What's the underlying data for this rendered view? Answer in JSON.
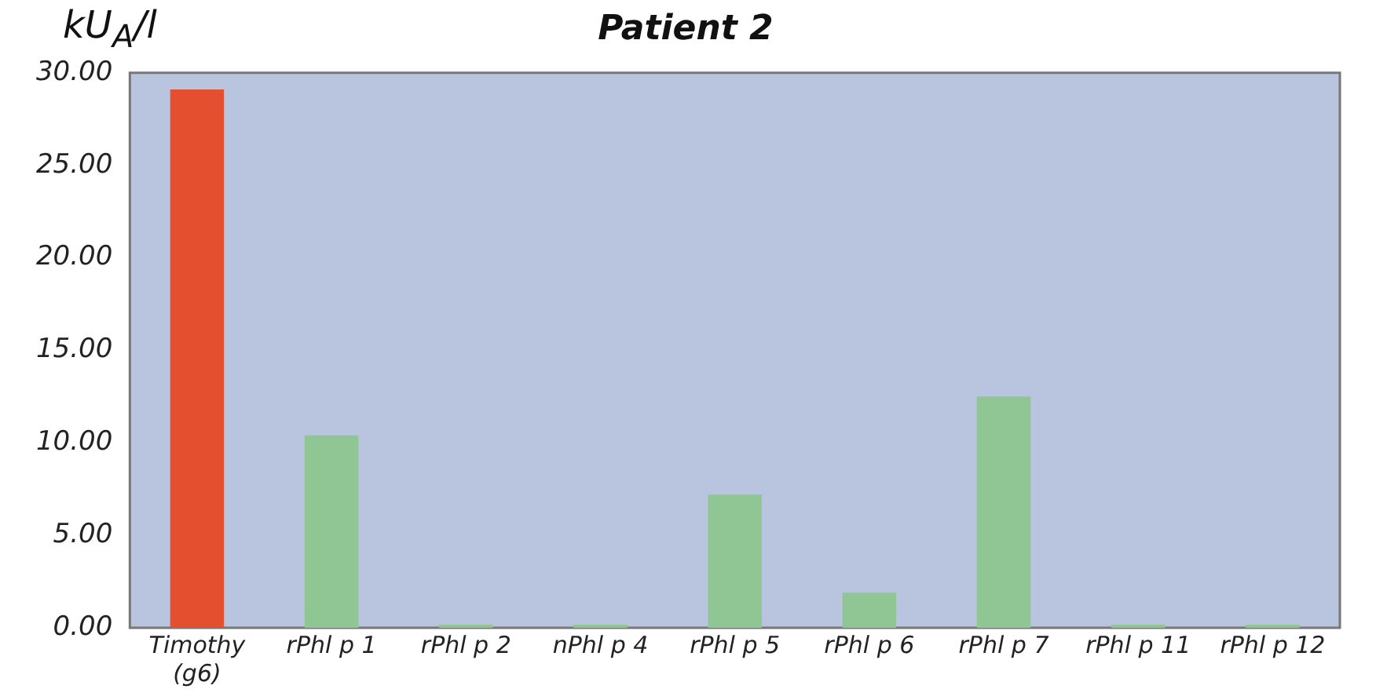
{
  "chart_data": {
    "type": "bar",
    "title": "Patient 2",
    "ylabel": "kU$_{A}$/l",
    "categories": [
      "Timothy (g6)",
      "rPhl p 1",
      "rPhl p 2",
      "nPhl p 4",
      "rPhl p 5",
      "rPhl p 6",
      "rPhl p 7",
      "rPhl p 11",
      "rPhl p 12"
    ],
    "values": [
      29.1,
      10.4,
      0,
      0,
      7.2,
      1.9,
      12.5,
      0,
      0
    ],
    "colors": [
      "#e4502f",
      "#8fc693",
      "#8fc693",
      "#8fc693",
      "#8fc693",
      "#8fc693",
      "#8fc693",
      "#8fc693",
      "#8fc693"
    ],
    "ylim": [
      0,
      30
    ],
    "yticks": [
      {
        "value": 0,
        "label": "0.00"
      },
      {
        "value": 5,
        "label": "5.00"
      },
      {
        "value": 10,
        "label": "10.00"
      },
      {
        "value": 15,
        "label": "15.00"
      },
      {
        "value": 20,
        "label": "20.00"
      },
      {
        "value": 25,
        "label": "25.00"
      },
      {
        "value": 30,
        "label": "30.00"
      }
    ],
    "grid": false,
    "legend": false
  }
}
